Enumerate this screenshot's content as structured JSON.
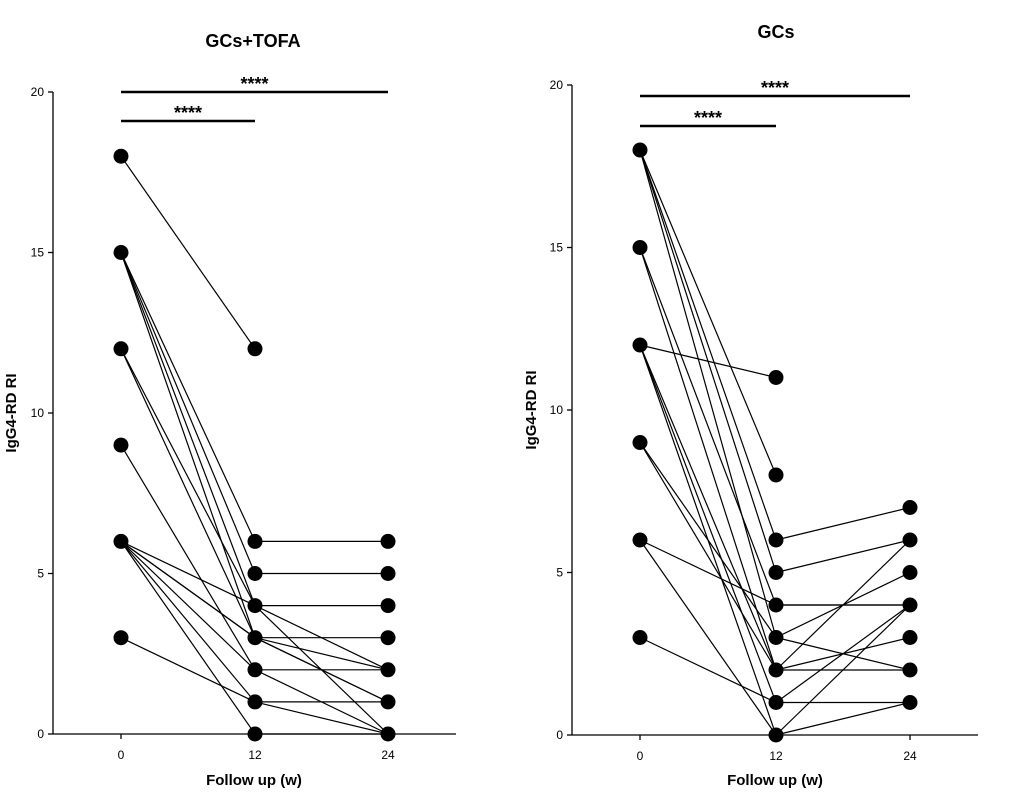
{
  "chart_data": [
    {
      "type": "scatter",
      "title": "GCs+TOFA",
      "xlabel": "Follow up (w)",
      "ylabel": "IgG4-RD RI",
      "x_ticks": [
        "0",
        "12",
        "24"
      ],
      "y_ticks": [
        "0",
        "5",
        "10",
        "15",
        "20"
      ],
      "ylim": [
        0,
        20
      ],
      "point_color": "#000000",
      "significance": [
        {
          "from": "0",
          "to": "12",
          "label": "****"
        },
        {
          "from": "0",
          "to": "24",
          "label": "****"
        }
      ],
      "subjects": [
        [
          18,
          12,
          null
        ],
        [
          15,
          6,
          6
        ],
        [
          15,
          5,
          5
        ],
        [
          15,
          4,
          4
        ],
        [
          15,
          3,
          3
        ],
        [
          12,
          4,
          2
        ],
        [
          12,
          3,
          1
        ],
        [
          9,
          2,
          2
        ],
        [
          6,
          3,
          2
        ],
        [
          6,
          3,
          1
        ],
        [
          6,
          2,
          0
        ],
        [
          6,
          1,
          1
        ],
        [
          6,
          0,
          0
        ],
        [
          6,
          4,
          0
        ],
        [
          3,
          1,
          0
        ]
      ]
    },
    {
      "type": "scatter",
      "title": "GCs",
      "xlabel": "Follow up (w)",
      "ylabel": "IgG4-RD RI",
      "x_ticks": [
        "0",
        "12",
        "24"
      ],
      "y_ticks": [
        "0",
        "5",
        "10",
        "15",
        "20"
      ],
      "ylim": [
        0,
        20
      ],
      "point_color": "#000000",
      "significance": [
        {
          "from": "0",
          "to": "12",
          "label": "****"
        },
        {
          "from": "0",
          "to": "24",
          "label": "****"
        }
      ],
      "subjects": [
        [
          18,
          8,
          null
        ],
        [
          18,
          6,
          7
        ],
        [
          18,
          5,
          6
        ],
        [
          18,
          3,
          5
        ],
        [
          15,
          4,
          4
        ],
        [
          15,
          2,
          6
        ],
        [
          12,
          11,
          null
        ],
        [
          12,
          2,
          3
        ],
        [
          12,
          0,
          4
        ],
        [
          12,
          1,
          4
        ],
        [
          9,
          3,
          2
        ],
        [
          9,
          2,
          2
        ],
        [
          6,
          4,
          4
        ],
        [
          6,
          0,
          1
        ],
        [
          3,
          1,
          1
        ]
      ]
    }
  ]
}
